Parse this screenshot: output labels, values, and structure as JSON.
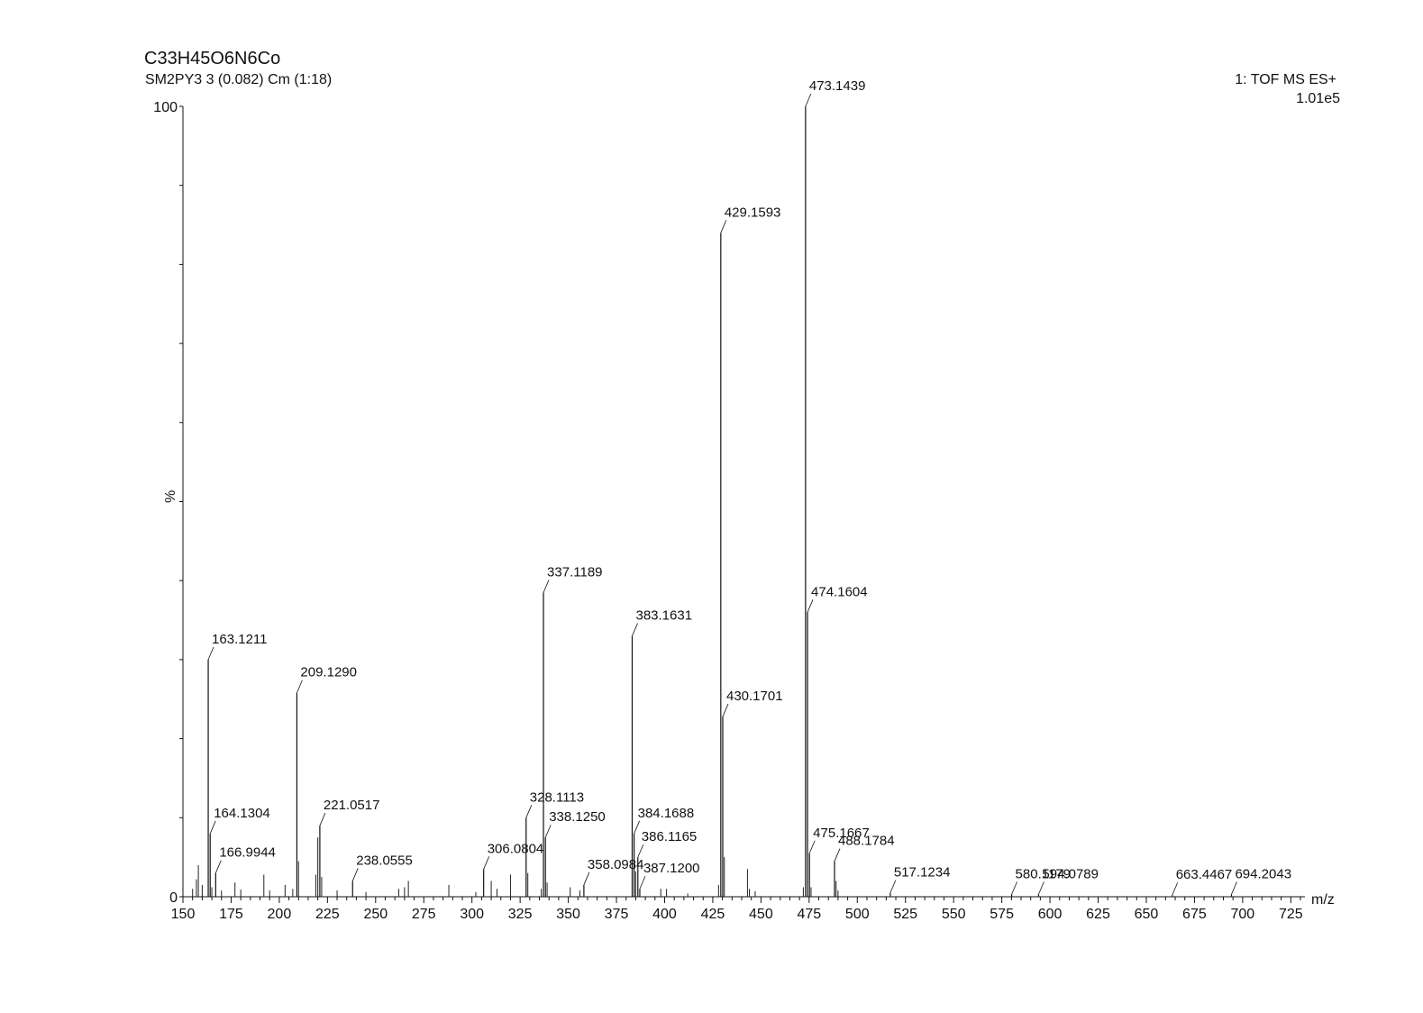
{
  "header": {
    "title": "C33H45O6N6Co",
    "subtitle": "SM2PY3 3 (0.082) Cm (1:18)",
    "instrument": "1: TOF MS ES+",
    "intensity": "1.01e5"
  },
  "chart_data": {
    "type": "bar",
    "title": "C33H45O6N6Co",
    "xlabel": "m/z",
    "ylabel": "%",
    "xlim": [
      150,
      730
    ],
    "ylim": [
      0,
      100
    ],
    "xticks": [
      150,
      175,
      200,
      225,
      250,
      275,
      300,
      325,
      350,
      375,
      400,
      425,
      450,
      475,
      500,
      525,
      550,
      575,
      600,
      625,
      650,
      675,
      700,
      725
    ],
    "yticks": [
      0,
      100
    ],
    "grid": false,
    "labeled_peaks": [
      {
        "mz": 163.1211,
        "intensity": 30.0,
        "label": "163.1211"
      },
      {
        "mz": 164.1304,
        "intensity": 8.0,
        "label": "164.1304"
      },
      {
        "mz": 166.9944,
        "intensity": 3.0,
        "label": "166.9944"
      },
      {
        "mz": 209.129,
        "intensity": 25.8,
        "label": "209.1290"
      },
      {
        "mz": 221.0517,
        "intensity": 9.0,
        "label": "221.0517"
      },
      {
        "mz": 238.0555,
        "intensity": 2.0,
        "label": "238.0555"
      },
      {
        "mz": 306.0804,
        "intensity": 3.5,
        "label": "306.0804"
      },
      {
        "mz": 328.1113,
        "intensity": 10.0,
        "label": "328.1113"
      },
      {
        "mz": 337.1189,
        "intensity": 38.5,
        "label": "337.1189"
      },
      {
        "mz": 338.125,
        "intensity": 7.5,
        "label": "338.1250"
      },
      {
        "mz": 358.0984,
        "intensity": 1.5,
        "label": "358.0984"
      },
      {
        "mz": 383.1631,
        "intensity": 33.0,
        "label": "383.1631"
      },
      {
        "mz": 384.1688,
        "intensity": 8.0,
        "label": "384.1688"
      },
      {
        "mz": 386.1165,
        "intensity": 5.0,
        "label": "386.1165"
      },
      {
        "mz": 387.12,
        "intensity": 1.0,
        "label": "387.1200"
      },
      {
        "mz": 429.1593,
        "intensity": 84.0,
        "label": "429.1593"
      },
      {
        "mz": 430.1701,
        "intensity": 22.8,
        "label": "430.1701"
      },
      {
        "mz": 473.1439,
        "intensity": 100.0,
        "label": "473.1439"
      },
      {
        "mz": 474.1604,
        "intensity": 36.0,
        "label": "474.1604"
      },
      {
        "mz": 475.1667,
        "intensity": 5.5,
        "label": "475.1667"
      },
      {
        "mz": 488.1784,
        "intensity": 4.5,
        "label": "488.1784"
      },
      {
        "mz": 517.1234,
        "intensity": 0.5,
        "label": "517.1234"
      },
      {
        "mz": 580.1179,
        "intensity": 0.3,
        "label": "580.1179"
      },
      {
        "mz": 594.0789,
        "intensity": 0.3,
        "label": "594.0789"
      },
      {
        "mz": 663.4467,
        "intensity": 0.2,
        "label": "663.4467"
      },
      {
        "mz": 694.2043,
        "intensity": 0.3,
        "label": "694.2043"
      }
    ],
    "minor_peaks": [
      {
        "mz": 155,
        "intensity": 1.0
      },
      {
        "mz": 157,
        "intensity": 2.2
      },
      {
        "mz": 158,
        "intensity": 4.0
      },
      {
        "mz": 160,
        "intensity": 1.5
      },
      {
        "mz": 165,
        "intensity": 1.2
      },
      {
        "mz": 170,
        "intensity": 0.8
      },
      {
        "mz": 177,
        "intensity": 1.8
      },
      {
        "mz": 180,
        "intensity": 0.9
      },
      {
        "mz": 192,
        "intensity": 2.8
      },
      {
        "mz": 195,
        "intensity": 0.8
      },
      {
        "mz": 203,
        "intensity": 1.5
      },
      {
        "mz": 207,
        "intensity": 1.0
      },
      {
        "mz": 210,
        "intensity": 4.5
      },
      {
        "mz": 219,
        "intensity": 2.8
      },
      {
        "mz": 220,
        "intensity": 7.5
      },
      {
        "mz": 222,
        "intensity": 2.5
      },
      {
        "mz": 230,
        "intensity": 0.8
      },
      {
        "mz": 245,
        "intensity": 0.6
      },
      {
        "mz": 262,
        "intensity": 1.0
      },
      {
        "mz": 265,
        "intensity": 1.2
      },
      {
        "mz": 267,
        "intensity": 2.0
      },
      {
        "mz": 288,
        "intensity": 1.5
      },
      {
        "mz": 302,
        "intensity": 0.6
      },
      {
        "mz": 310,
        "intensity": 2.0
      },
      {
        "mz": 313,
        "intensity": 1.0
      },
      {
        "mz": 320,
        "intensity": 2.8
      },
      {
        "mz": 329,
        "intensity": 3.0
      },
      {
        "mz": 336,
        "intensity": 1.0
      },
      {
        "mz": 339,
        "intensity": 1.8
      },
      {
        "mz": 351,
        "intensity": 1.2
      },
      {
        "mz": 356,
        "intensity": 0.8
      },
      {
        "mz": 385,
        "intensity": 3.2
      },
      {
        "mz": 398,
        "intensity": 1.0
      },
      {
        "mz": 401,
        "intensity": 1.0
      },
      {
        "mz": 412,
        "intensity": 0.4
      },
      {
        "mz": 428,
        "intensity": 1.5
      },
      {
        "mz": 431,
        "intensity": 5.0
      },
      {
        "mz": 443,
        "intensity": 3.5
      },
      {
        "mz": 444,
        "intensity": 1.0
      },
      {
        "mz": 447,
        "intensity": 0.7
      },
      {
        "mz": 472,
        "intensity": 1.2
      },
      {
        "mz": 476,
        "intensity": 1.2
      },
      {
        "mz": 489,
        "intensity": 2.0
      },
      {
        "mz": 490,
        "intensity": 0.8
      }
    ]
  }
}
